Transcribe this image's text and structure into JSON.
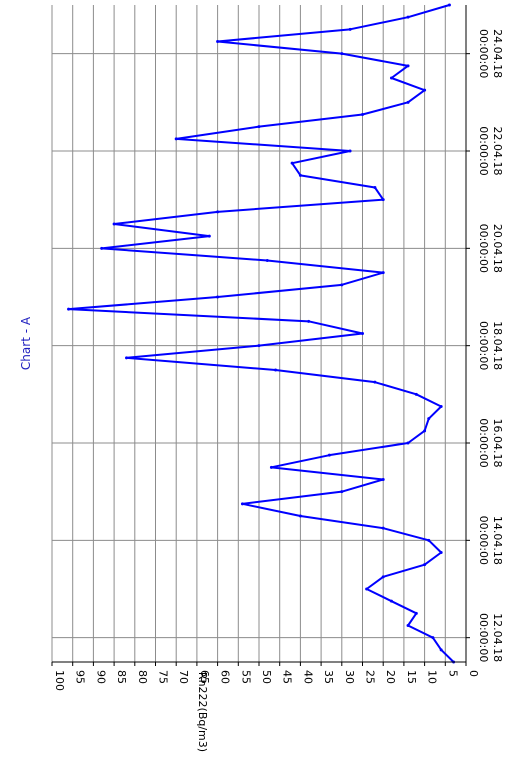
{
  "chart_data": {
    "type": "line",
    "title": "Chart - A",
    "ylabel": "Rn222(Bq/m3)",
    "xlabel": "",
    "ylim": [
      0,
      100
    ],
    "yticks": [
      0,
      5,
      10,
      15,
      20,
      25,
      30,
      35,
      40,
      45,
      50,
      55,
      60,
      65,
      70,
      75,
      80,
      85,
      90,
      95,
      100
    ],
    "xlim": [
      "2018-04-11T12:00",
      "2018-04-25T00:00"
    ],
    "xticks": [
      {
        "date": "12.04.18",
        "time": "00:00:00"
      },
      {
        "date": "14.04.18",
        "time": "00:00:00"
      },
      {
        "date": "16.04.18",
        "time": "00:00:00"
      },
      {
        "date": "18.04.18",
        "time": "00:00:00"
      },
      {
        "date": "20.04.18",
        "time": "00:00:00"
      },
      {
        "date": "22.04.18",
        "time": "00:00:00"
      },
      {
        "date": "24.04.18",
        "time": "00:00:00"
      }
    ],
    "grid": true,
    "rotation": "rotated 90 degrees clockwise",
    "series": [
      {
        "color": "#0000ff",
        "points": [
          [
            "2018-04-11T12:00",
            3
          ],
          [
            "2018-04-11T18:00",
            6
          ],
          [
            "2018-04-12T00:00",
            8
          ],
          [
            "2018-04-12T06:00",
            14
          ],
          [
            "2018-04-12T12:00",
            12
          ],
          [
            "2018-04-12T18:00",
            18
          ],
          [
            "2018-04-13T00:00",
            24
          ],
          [
            "2018-04-13T06:00",
            20
          ],
          [
            "2018-04-13T12:00",
            10
          ],
          [
            "2018-04-13T18:00",
            6
          ],
          [
            "2018-04-14T00:00",
            9
          ],
          [
            "2018-04-14T06:00",
            20
          ],
          [
            "2018-04-14T12:00",
            40
          ],
          [
            "2018-04-14T18:00",
            54
          ],
          [
            "2018-04-15T00:00",
            30
          ],
          [
            "2018-04-15T06:00",
            20
          ],
          [
            "2018-04-15T12:00",
            47
          ],
          [
            "2018-04-15T18:00",
            33
          ],
          [
            "2018-04-16T00:00",
            14
          ],
          [
            "2018-04-16T06:00",
            10
          ],
          [
            "2018-04-16T12:00",
            9
          ],
          [
            "2018-04-16T18:00",
            6
          ],
          [
            "2018-04-17T00:00",
            12
          ],
          [
            "2018-04-17T06:00",
            22
          ],
          [
            "2018-04-17T12:00",
            46
          ],
          [
            "2018-04-17T18:00",
            82
          ],
          [
            "2018-04-18T00:00",
            50
          ],
          [
            "2018-04-18T06:00",
            25
          ],
          [
            "2018-04-18T12:00",
            38
          ],
          [
            "2018-04-18T18:00",
            96
          ],
          [
            "2018-04-19T00:00",
            60
          ],
          [
            "2018-04-19T06:00",
            30
          ],
          [
            "2018-04-19T12:00",
            20
          ],
          [
            "2018-04-19T18:00",
            48
          ],
          [
            "2018-04-20T00:00",
            88
          ],
          [
            "2018-04-20T06:00",
            62
          ],
          [
            "2018-04-20T12:00",
            85
          ],
          [
            "2018-04-20T18:00",
            60
          ],
          [
            "2018-04-21T00:00",
            20
          ],
          [
            "2018-04-21T06:00",
            22
          ],
          [
            "2018-04-21T12:00",
            40
          ],
          [
            "2018-04-21T18:00",
            42
          ],
          [
            "2018-04-22T00:00",
            28
          ],
          [
            "2018-04-22T06:00",
            70
          ],
          [
            "2018-04-22T12:00",
            50
          ],
          [
            "2018-04-22T18:00",
            25
          ],
          [
            "2018-04-23T00:00",
            14
          ],
          [
            "2018-04-23T06:00",
            10
          ],
          [
            "2018-04-23T12:00",
            18
          ],
          [
            "2018-04-23T18:00",
            14
          ],
          [
            "2018-04-24T00:00",
            30
          ],
          [
            "2018-04-24T06:00",
            60
          ],
          [
            "2018-04-24T12:00",
            28
          ],
          [
            "2018-04-24T18:00",
            14
          ],
          [
            "2018-04-25T00:00",
            4
          ]
        ]
      }
    ]
  },
  "colors": {
    "series": "#0000ff",
    "title": "#1f1fbf",
    "grid": "#8c8c8c",
    "axis": "#000000"
  }
}
